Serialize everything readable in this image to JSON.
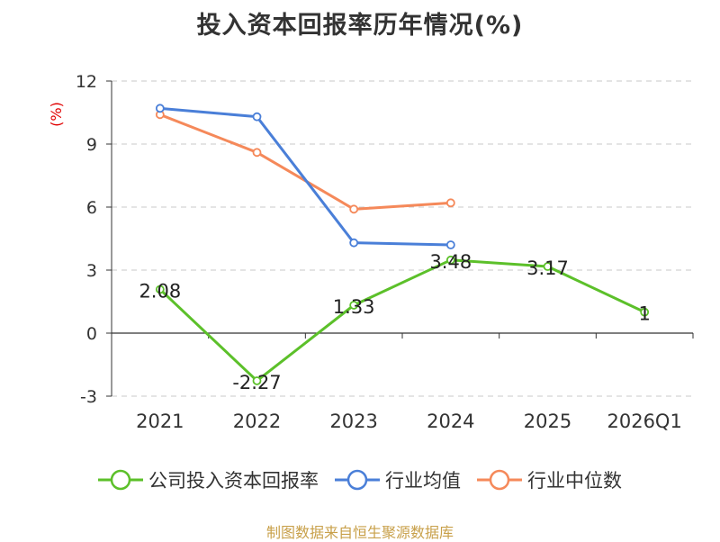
{
  "title": "投入资本回报率历年情况(%)",
  "source": "制图数据来自恒生聚源数据库",
  "chart_data": {
    "type": "line",
    "title": "投入资本回报率历年情况(%)",
    "ylabel": "(%)",
    "xlabel": "",
    "ylim": [
      -3,
      12
    ],
    "yticks": [
      -3,
      0,
      3,
      6,
      9,
      12
    ],
    "ytick_labels": [
      "-3",
      "0",
      "3",
      "6",
      "9",
      "12"
    ],
    "grid": true,
    "legend_position": "bottom",
    "categories": [
      "2021",
      "2022",
      "2023",
      "2024",
      "2025",
      "2026Q1"
    ],
    "series": [
      {
        "name": "公司投入资本回报率",
        "color": "#5cc02a",
        "values": [
          2.08,
          -2.27,
          1.33,
          3.48,
          3.17,
          1
        ],
        "labels": [
          "2.08",
          "-2.27",
          "1.33",
          "3.48",
          "3.17",
          "1"
        ],
        "show_labels": true
      },
      {
        "name": "行业均值",
        "color": "#4a7fd8",
        "values": [
          10.7,
          10.3,
          4.3,
          4.2,
          null,
          null
        ],
        "show_labels": false
      },
      {
        "name": "行业中位数",
        "color": "#f5895a",
        "values": [
          10.4,
          8.6,
          5.9,
          6.2,
          null,
          null
        ],
        "show_labels": false
      }
    ]
  }
}
